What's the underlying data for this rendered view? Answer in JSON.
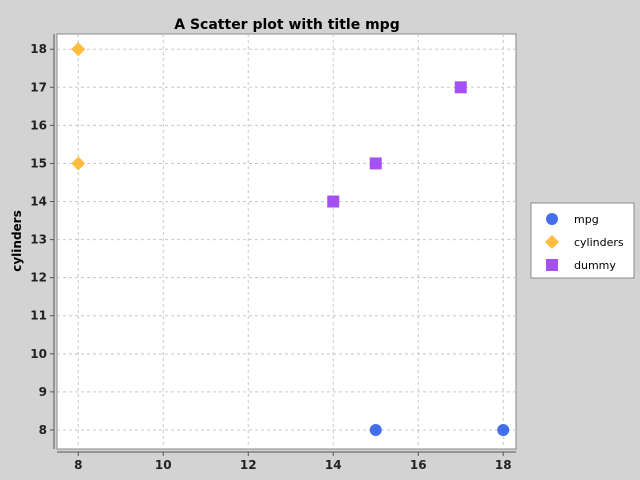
{
  "chart_data": {
    "type": "scatter",
    "title": "A Scatter plot with title mpg",
    "xlabel": "",
    "ylabel": "cylinders",
    "xlim": [
      7.5,
      18.3
    ],
    "ylim": [
      7.5,
      18.4
    ],
    "x_ticks": [
      8,
      10,
      12,
      14,
      16,
      18
    ],
    "y_ticks": [
      8,
      9,
      10,
      11,
      12,
      13,
      14,
      15,
      16,
      17,
      18
    ],
    "grid": true,
    "legend_position": "right",
    "series": [
      {
        "name": "mpg",
        "marker": "circle",
        "color": "#2f5fe8",
        "points": [
          {
            "x": 15,
            "y": 8
          },
          {
            "x": 18,
            "y": 8
          }
        ]
      },
      {
        "name": "cylinders",
        "marker": "diamond",
        "color": "#ffb62b",
        "points": [
          {
            "x": 8,
            "y": 18
          },
          {
            "x": 8,
            "y": 15
          }
        ]
      },
      {
        "name": "dummy",
        "marker": "square",
        "color": "#9a3ef0",
        "points": [
          {
            "x": 17,
            "y": 17
          },
          {
            "x": 15,
            "y": 15
          },
          {
            "x": 14,
            "y": 14
          }
        ]
      }
    ]
  }
}
